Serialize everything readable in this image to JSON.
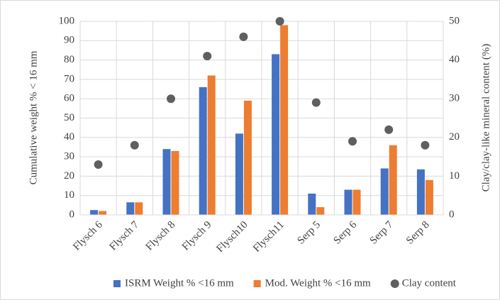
{
  "chart_data": {
    "type": "bar",
    "categories": [
      "Flysch 6",
      "Flysch 7",
      "Flysch 8",
      "Flysch 9",
      "Flysch10",
      "Flysch11",
      "Serp 5",
      "Serp 6",
      "Serp 7",
      "Serp 8"
    ],
    "series": [
      {
        "name": "ISRM Weight % <16 mm",
        "color": "#4472c4",
        "values": [
          2.5,
          6.5,
          34,
          66,
          42,
          83,
          11,
          13,
          24,
          23.5
        ]
      },
      {
        "name": "Mod. Weight % <16 mm",
        "color": "#ed7d31",
        "values": [
          2,
          6.5,
          33,
          72,
          59,
          98,
          4,
          13,
          36,
          18
        ]
      },
      {
        "name": "Clay content",
        "color": "#5f5f5f",
        "type": "scatter",
        "axis": "y2",
        "values": [
          13,
          18,
          30,
          41,
          46,
          50,
          29,
          19,
          22,
          18
        ]
      }
    ],
    "y_label": "Cumulative weight % < 16 mm",
    "y2_label": "Clay/clay-like mineral content (%)",
    "ylim": [
      0,
      100
    ],
    "yticks": [
      0,
      10,
      20,
      30,
      40,
      50,
      60,
      70,
      80,
      90,
      100
    ],
    "y2lim": [
      0,
      50
    ],
    "y2ticks": [
      0,
      10,
      20,
      30,
      40,
      50
    ],
    "grid": true,
    "legend": "bottom"
  }
}
